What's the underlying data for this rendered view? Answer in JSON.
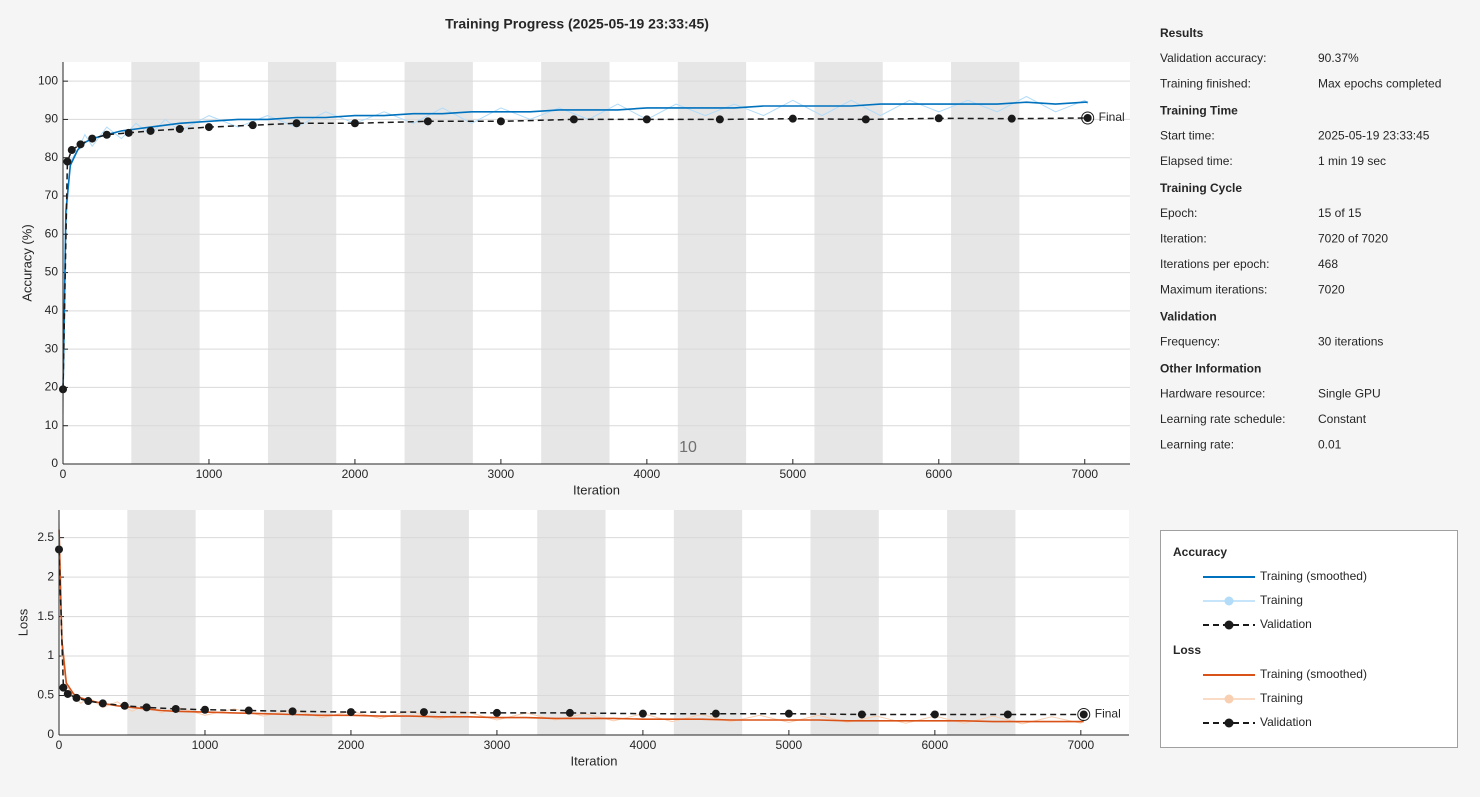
{
  "title": "Training Progress (2025-05-19 23:33:45)",
  "chart_data": [
    {
      "type": "line",
      "legend_title": "Accuracy",
      "xlabel": "Iteration",
      "ylabel": "Accuracy (%)",
      "annotation": "10",
      "final_label": "Final",
      "xlim": [
        0,
        7310
      ],
      "ylim": [
        0,
        105
      ],
      "xticks": [
        0,
        1000,
        2000,
        3000,
        4000,
        5000,
        6000,
        7000
      ],
      "yticks": [
        0,
        10,
        20,
        30,
        40,
        50,
        60,
        70,
        80,
        90,
        100
      ],
      "grid": "y",
      "band_color": "#e6e6e6",
      "epoch_bands": [
        [
          468,
          936
        ],
        [
          1404,
          1872
        ],
        [
          2340,
          2808
        ],
        [
          3276,
          3744
        ],
        [
          4212,
          4680
        ],
        [
          5148,
          5616
        ],
        [
          6084,
          6552
        ]
      ],
      "series": [
        {
          "name": "Training (smoothed)",
          "color": "#0072bd",
          "line_width": 1.6,
          "x": [
            1,
            20,
            50,
            100,
            150,
            200,
            300,
            400,
            500,
            600,
            700,
            800,
            1000,
            1200,
            1400,
            1600,
            1800,
            2000,
            2200,
            2400,
            2600,
            2800,
            3000,
            3200,
            3400,
            3600,
            3800,
            4000,
            4200,
            4400,
            4600,
            4800,
            5000,
            5200,
            5400,
            5600,
            5800,
            6000,
            6200,
            6400,
            6600,
            6800,
            7000,
            7020
          ],
          "values": [
            20,
            66,
            78,
            82,
            84,
            85,
            86,
            87,
            87.5,
            88,
            88.5,
            89,
            89.5,
            90,
            90,
            90.5,
            90.5,
            91,
            91,
            91.5,
            91.5,
            92,
            92,
            92,
            92.5,
            92.5,
            92.5,
            93,
            93,
            93,
            93,
            93.5,
            93.5,
            93.5,
            93.5,
            94,
            94,
            94,
            94,
            94,
            94.5,
            94,
            94.5,
            94.5
          ]
        },
        {
          "name": "Training",
          "color": "#b3dcf9",
          "line_width": 1,
          "x": [
            1,
            20,
            50,
            100,
            150,
            200,
            300,
            400,
            500,
            600,
            700,
            800,
            1000,
            1200,
            1400,
            1600,
            1800,
            2000,
            2200,
            2400,
            2600,
            2800,
            3000,
            3200,
            3400,
            3600,
            3800,
            4000,
            4200,
            4400,
            4600,
            4800,
            5000,
            5200,
            5400,
            5600,
            5800,
            6000,
            6200,
            6400,
            6600,
            6800,
            7000,
            7020
          ],
          "values": [
            13,
            62,
            79,
            82,
            86,
            83,
            88,
            85,
            89,
            86,
            90,
            87,
            91,
            88,
            91,
            88,
            92,
            89,
            92,
            89,
            93,
            89,
            93,
            90,
            93,
            90,
            94,
            90,
            94,
            91,
            94,
            91,
            95,
            91,
            95,
            91,
            95,
            92,
            95,
            92,
            96,
            92,
            95,
            94
          ]
        },
        {
          "name": "Validation",
          "color": "#1a1a1a",
          "line_width": 1.5,
          "dashed": true,
          "marker": "circle",
          "x": [
            0,
            30,
            60,
            120,
            200,
            300,
            450,
            600,
            800,
            1000,
            1300,
            1600,
            2000,
            2500,
            3000,
            3500,
            4000,
            4500,
            5000,
            5500,
            6000,
            6500,
            7020
          ],
          "values": [
            19.5,
            79,
            82,
            83.5,
            85,
            86,
            86.5,
            87,
            87.5,
            88,
            88.5,
            89,
            89,
            89.5,
            89.5,
            90,
            90,
            90,
            90.2,
            90,
            90.3,
            90.2,
            90.37
          ]
        }
      ]
    },
    {
      "type": "line",
      "legend_title": "Loss",
      "xlabel": "Iteration",
      "ylabel": "Loss",
      "final_label": "Final",
      "xlim": [
        0,
        7330
      ],
      "ylim": [
        0,
        2.85
      ],
      "xticks": [
        0,
        1000,
        2000,
        3000,
        4000,
        5000,
        6000,
        7000
      ],
      "yticks": [
        0,
        0.5,
        1,
        1.5,
        2,
        2.5
      ],
      "grid": "y",
      "band_color": "#e6e6e6",
      "epoch_bands": [
        [
          468,
          936
        ],
        [
          1404,
          1872
        ],
        [
          2340,
          2808
        ],
        [
          3276,
          3744
        ],
        [
          4212,
          4680
        ],
        [
          5148,
          5616
        ],
        [
          6084,
          6552
        ]
      ],
      "series": [
        {
          "name": "Training (smoothed)",
          "color": "#d95319",
          "line_width": 1.6,
          "x": [
            1,
            20,
            50,
            100,
            150,
            200,
            300,
            400,
            500,
            600,
            700,
            800,
            1000,
            1200,
            1400,
            1600,
            1800,
            2000,
            2200,
            2400,
            2600,
            2800,
            3000,
            3200,
            3400,
            3600,
            3800,
            4000,
            4200,
            4400,
            4600,
            4800,
            5000,
            5200,
            5400,
            5600,
            5800,
            6000,
            6200,
            6400,
            6600,
            6800,
            7000,
            7020
          ],
          "values": [
            2.6,
            1.2,
            0.66,
            0.52,
            0.47,
            0.44,
            0.4,
            0.37,
            0.35,
            0.33,
            0.31,
            0.3,
            0.29,
            0.28,
            0.27,
            0.26,
            0.25,
            0.25,
            0.24,
            0.24,
            0.23,
            0.23,
            0.22,
            0.22,
            0.21,
            0.21,
            0.21,
            0.2,
            0.2,
            0.2,
            0.19,
            0.19,
            0.19,
            0.19,
            0.18,
            0.18,
            0.18,
            0.18,
            0.18,
            0.17,
            0.17,
            0.17,
            0.17,
            0.17
          ]
        },
        {
          "name": "Training",
          "color": "#f9cfb2",
          "line_width": 1,
          "x": [
            1,
            20,
            50,
            100,
            150,
            200,
            300,
            400,
            500,
            600,
            700,
            800,
            1000,
            1200,
            1400,
            1600,
            1800,
            2000,
            2200,
            2400,
            2600,
            2800,
            3000,
            3200,
            3400,
            3600,
            3800,
            4000,
            4200,
            4400,
            4600,
            4800,
            5000,
            5200,
            5400,
            5600,
            5800,
            6000,
            6200,
            6400,
            6600,
            6800,
            7000,
            7020
          ],
          "values": [
            2.7,
            1.0,
            0.62,
            0.5,
            0.4,
            0.48,
            0.35,
            0.42,
            0.3,
            0.38,
            0.28,
            0.36,
            0.25,
            0.33,
            0.24,
            0.32,
            0.22,
            0.3,
            0.21,
            0.3,
            0.2,
            0.29,
            0.19,
            0.28,
            0.19,
            0.27,
            0.18,
            0.27,
            0.17,
            0.26,
            0.17,
            0.25,
            0.16,
            0.25,
            0.16,
            0.24,
            0.15,
            0.24,
            0.15,
            0.24,
            0.14,
            0.23,
            0.15,
            0.2
          ]
        },
        {
          "name": "Validation",
          "color": "#1a1a1a",
          "line_width": 1.5,
          "dashed": true,
          "marker": "circle",
          "x": [
            0,
            30,
            60,
            120,
            200,
            300,
            450,
            600,
            800,
            1000,
            1300,
            1600,
            2000,
            2500,
            3000,
            3500,
            4000,
            4500,
            5000,
            5500,
            6000,
            6500,
            7020
          ],
          "values": [
            2.35,
            0.6,
            0.52,
            0.47,
            0.43,
            0.4,
            0.37,
            0.35,
            0.33,
            0.32,
            0.31,
            0.3,
            0.29,
            0.29,
            0.28,
            0.28,
            0.27,
            0.27,
            0.27,
            0.26,
            0.26,
            0.26,
            0.26
          ]
        }
      ]
    }
  ],
  "info": [
    {
      "title": "Results",
      "rows": [
        [
          "Validation accuracy:",
          "90.37%"
        ],
        [
          "Training finished:",
          "Max epochs completed"
        ]
      ]
    },
    {
      "title": "Training Time",
      "rows": [
        [
          "Start time:",
          "2025-05-19 23:33:45"
        ],
        [
          "Elapsed time:",
          "1 min 19 sec"
        ]
      ]
    },
    {
      "title": "Training Cycle",
      "rows": [
        [
          "Epoch:",
          "15 of 15"
        ],
        [
          "Iteration:",
          "7020 of 7020"
        ],
        [
          "Iterations per epoch:",
          "468"
        ],
        [
          "Maximum iterations:",
          "7020"
        ]
      ]
    },
    {
      "title": "Validation",
      "rows": [
        [
          "Frequency:",
          "30 iterations"
        ]
      ]
    },
    {
      "title": "Other Information",
      "rows": [
        [
          "Hardware resource:",
          "Single GPU"
        ],
        [
          "Learning rate schedule:",
          "Constant"
        ],
        [
          "Learning rate:",
          "0.01"
        ]
      ]
    }
  ]
}
